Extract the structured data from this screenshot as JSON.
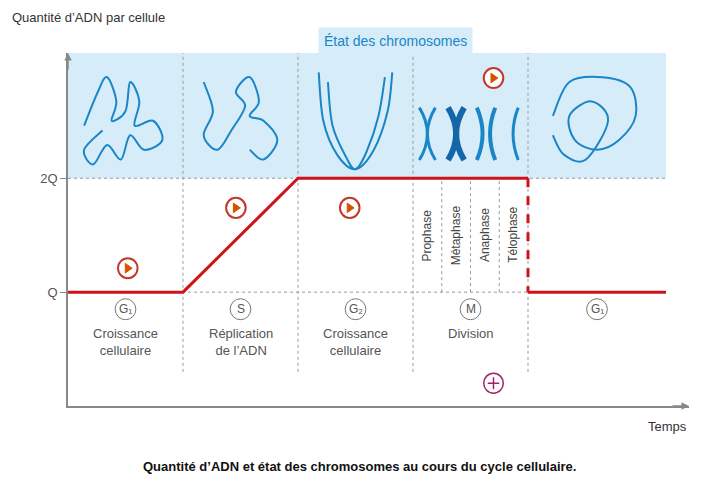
{
  "chart_data": {
    "type": "line",
    "caption": "Quantité d’ADN et état des chromosomes au cours du cycle cellulaire.",
    "ylabel": "Quantité d’ADN par cellule",
    "xlabel": "Temps",
    "band_title": "État des chromosomes",
    "x": [
      0,
      1,
      2,
      4,
      4,
      5.2
    ],
    "series": [
      {
        "color": "#d0121b",
        "line_style": "solid",
        "values": [
          1,
          1,
          2,
          2,
          null,
          null
        ]
      },
      {
        "color": "#d0121b",
        "line_style": "dashed",
        "values": [
          null,
          null,
          null,
          2,
          1,
          null
        ]
      },
      {
        "color": "#d0121b",
        "line_style": "solid",
        "values": [
          null,
          null,
          null,
          null,
          1,
          1
        ]
      }
    ],
    "xlim": [
      0,
      5.4
    ],
    "ylim": [
      0,
      3.1
    ],
    "yticks": [
      {
        "value": 1,
        "label": "Q"
      },
      {
        "value": 2,
        "label": "2Q"
      }
    ],
    "tick_labels": "y",
    "grid": false,
    "phases": [
      {
        "label": "G₁",
        "name": "Croissance cellulaire",
        "start": 0,
        "end": 1
      },
      {
        "label": "S",
        "name": "Réplication de l’ADN",
        "start": 1,
        "end": 2
      },
      {
        "label": "G₂",
        "name": "Croissance cellulaire",
        "start": 2,
        "end": 3
      },
      {
        "label": "M",
        "name": "Division",
        "start": 3,
        "end": 4,
        "subphases": [
          "Prophase",
          "Métaphase",
          "Anaphase",
          "Télophase"
        ]
      },
      {
        "label": "G₁",
        "start": 4,
        "end": 5.2
      }
    ]
  }
}
